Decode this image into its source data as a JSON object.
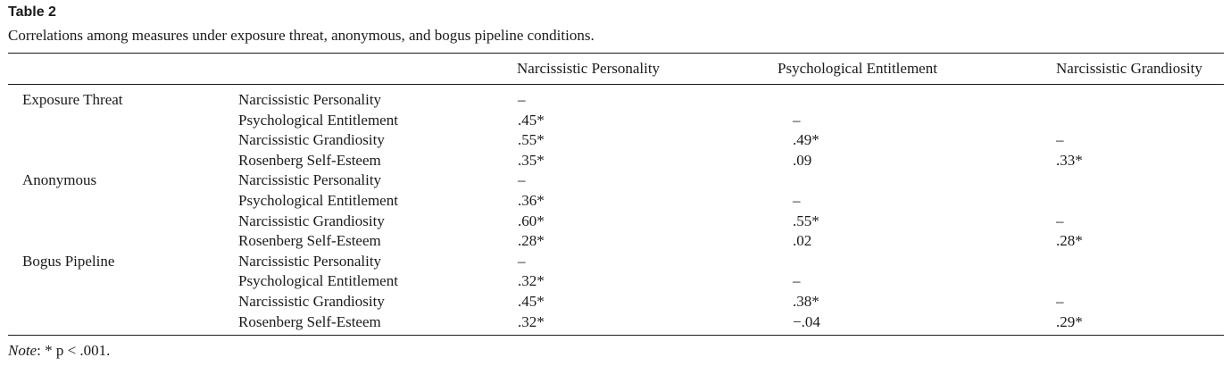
{
  "table": {
    "title": "Table 2",
    "caption": "Correlations among measures under exposure threat, anonymous, and bogus pipeline conditions.",
    "columns": [
      "Narcissistic Personality",
      "Psychological Entitlement",
      "Narcissistic Grandiosity"
    ],
    "rows": [
      {
        "group": "Exposure Threat",
        "measure": "Narcissistic Personality",
        "values": [
          "–",
          "",
          ""
        ]
      },
      {
        "group": "",
        "measure": "Psychological Entitlement",
        "values": [
          ".45*",
          "–",
          ""
        ]
      },
      {
        "group": "",
        "measure": "Narcissistic Grandiosity",
        "values": [
          ".55*",
          ".49*",
          "–"
        ]
      },
      {
        "group": "",
        "measure": "Rosenberg Self-Esteem",
        "values": [
          ".35*",
          ".09",
          ".33*"
        ]
      },
      {
        "group": "Anonymous",
        "measure": "Narcissistic Personality",
        "values": [
          "–",
          "",
          ""
        ]
      },
      {
        "group": "",
        "measure": "Psychological Entitlement",
        "values": [
          ".36*",
          "–",
          ""
        ]
      },
      {
        "group": "",
        "measure": "Narcissistic Grandiosity",
        "values": [
          ".60*",
          ".55*",
          "–"
        ]
      },
      {
        "group": "",
        "measure": "Rosenberg Self-Esteem",
        "values": [
          ".28*",
          ".02",
          ".28*"
        ]
      },
      {
        "group": "Bogus Pipeline",
        "measure": "Narcissistic Personality",
        "values": [
          "–",
          "",
          ""
        ]
      },
      {
        "group": "",
        "measure": "Psychological Entitlement",
        "values": [
          ".32*",
          "–",
          ""
        ]
      },
      {
        "group": "",
        "measure": "Narcissistic Grandiosity",
        "values": [
          ".45*",
          ".38*",
          "–"
        ]
      },
      {
        "group": "",
        "measure": "Rosenberg Self-Esteem",
        "values": [
          ".32*",
          "−.04",
          ".29*"
        ]
      }
    ],
    "note_label": "Note",
    "note_text": ": * p < .001."
  }
}
